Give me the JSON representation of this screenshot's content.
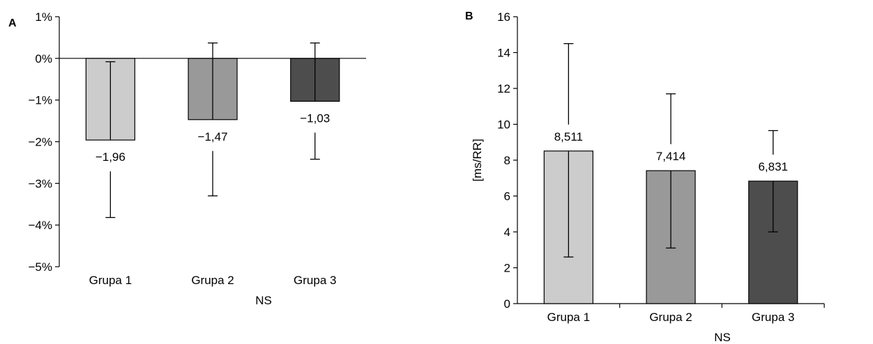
{
  "chart_data": [
    {
      "panel_label": "A",
      "type": "bar",
      "categories": [
        "Grupa 1",
        "Grupa 2",
        "Grupa 3"
      ],
      "values": [
        -1.96,
        -1.47,
        -1.03
      ],
      "value_labels": [
        "−1,96",
        "−1,47",
        "−1,03"
      ],
      "error_low": [
        -3.82,
        -3.3,
        -2.42
      ],
      "error_high": [
        -0.08,
        0.37,
        0.37
      ],
      "colors": [
        "#cccccc",
        "#999999",
        "#4d4d4d"
      ],
      "ylim": [
        -5,
        1
      ],
      "yticks": [
        1,
        0,
        -1,
        -2,
        -3,
        -4,
        -5
      ],
      "ytick_labels": [
        "1%",
        "0%",
        "−1%",
        "−2%",
        "−3%",
        "−4%",
        "−5%"
      ],
      "xlabel": "NS",
      "ylabel": "",
      "grid": false
    },
    {
      "panel_label": "B",
      "type": "bar",
      "categories": [
        "Grupa 1",
        "Grupa 2",
        "Grupa 3"
      ],
      "values": [
        8.511,
        7.414,
        6.831
      ],
      "value_labels": [
        "8,511",
        "7,414",
        "6,831"
      ],
      "error_low": [
        2.6,
        3.1,
        4.0
      ],
      "error_high": [
        14.5,
        11.7,
        9.65
      ],
      "colors": [
        "#cccccc",
        "#999999",
        "#4d4d4d"
      ],
      "ylim": [
        0,
        16
      ],
      "yticks": [
        16,
        14,
        12,
        10,
        8,
        6,
        4,
        2,
        0
      ],
      "ytick_labels": [
        "16",
        "14",
        "12",
        "10",
        "8",
        "6",
        "4",
        "2",
        "0"
      ],
      "xlabel": "NS",
      "ylabel": "[ms/RR]",
      "grid": false
    }
  ]
}
